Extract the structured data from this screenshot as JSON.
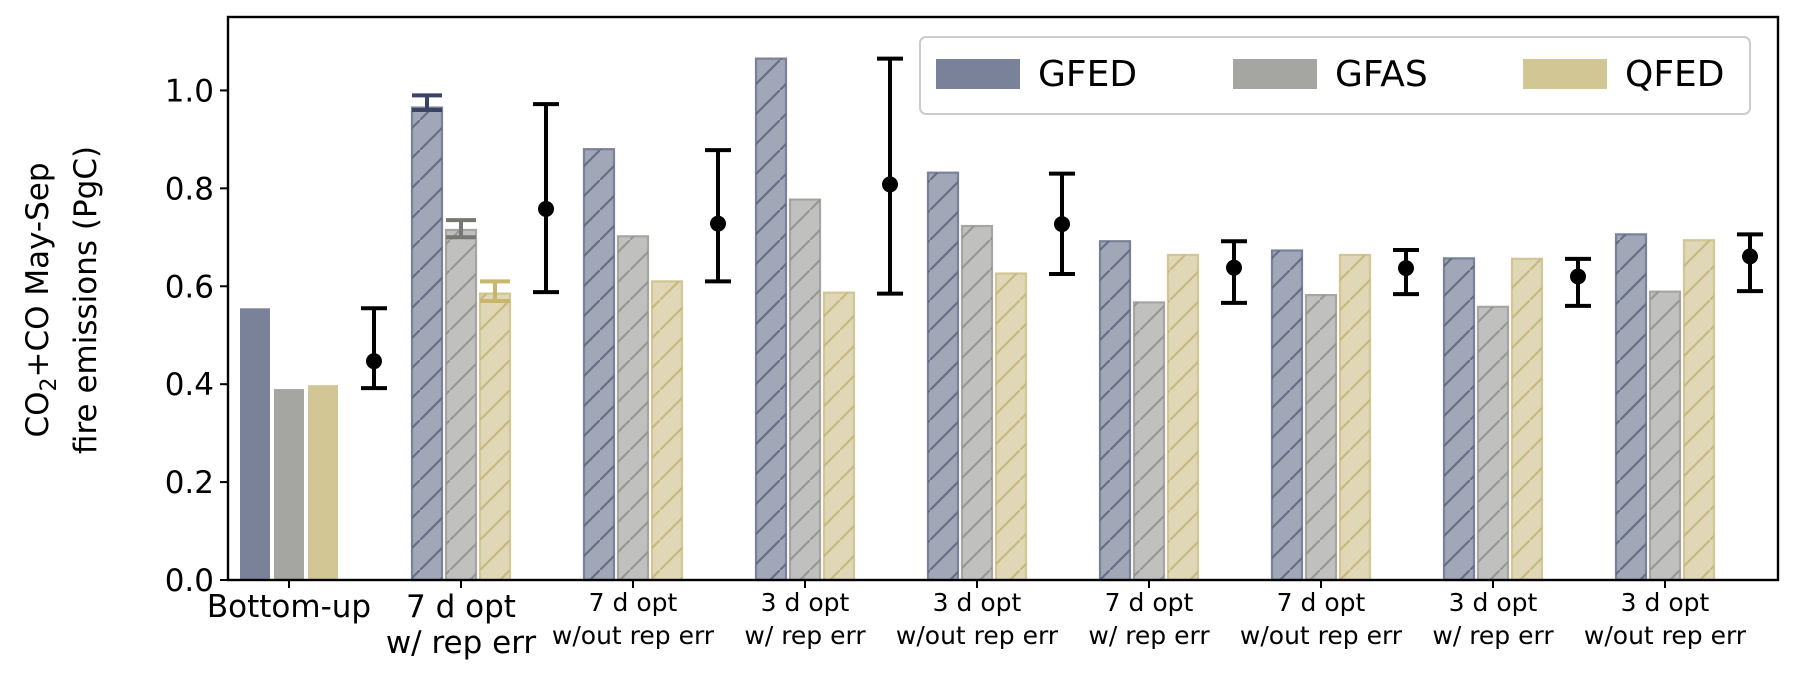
{
  "chart_data": {
    "type": "bar",
    "ylabel_line1": "CO",
    "ylabel_sub": "2",
    "ylabel_line1_rest": "+CO May-Sep",
    "ylabel_line2": "fire emissions (PgC)",
    "ylim": [
      0,
      1.15
    ],
    "yticks": [
      "0.0",
      "0.2",
      "0.4",
      "0.6",
      "0.8",
      "1.0"
    ],
    "categories": [
      {
        "line1": "Bottom-up",
        "line2": "",
        "size": "big"
      },
      {
        "line1": "7 d opt",
        "line2": "w/ rep err",
        "size": "big"
      },
      {
        "line1": "7 d opt",
        "line2": "w/out rep err",
        "size": "small"
      },
      {
        "line1": "3 d opt",
        "line2": "w/ rep err",
        "size": "small"
      },
      {
        "line1": "3 d opt",
        "line2": "w/out rep err",
        "size": "small"
      },
      {
        "line1": "7 d opt",
        "line2": "w/ rep err",
        "size": "small"
      },
      {
        "line1": "7 d opt",
        "line2": "w/out rep err",
        "size": "small"
      },
      {
        "line1": "3 d opt",
        "line2": "w/ rep err",
        "size": "small"
      },
      {
        "line1": "3 d opt",
        "line2": "w/out rep err",
        "size": "small"
      }
    ],
    "series": [
      {
        "name": "GFED",
        "color": "#7a8299",
        "values": [
          0.555,
          0.965,
          0.88,
          1.065,
          0.832,
          0.692,
          0.673,
          0.657,
          0.706
        ],
        "errors": [
          null,
          [
            0.96,
            0.99
          ],
          null,
          null,
          null,
          null,
          null,
          null,
          null
        ]
      },
      {
        "name": "GFAS",
        "color": "#a5a6a2",
        "values": [
          0.39,
          0.715,
          0.702,
          0.777,
          0.723,
          0.567,
          0.582,
          0.558,
          0.589
        ],
        "errors": [
          null,
          [
            0.7,
            0.735
          ],
          null,
          null,
          null,
          null,
          null,
          null,
          null
        ]
      },
      {
        "name": "QFED",
        "color": "#d2c695",
        "values": [
          0.398,
          0.585,
          0.61,
          0.587,
          0.626,
          0.664,
          0.664,
          0.656,
          0.694
        ],
        "errors": [
          null,
          [
            0.57,
            0.61
          ],
          null,
          null,
          null,
          null,
          null,
          null,
          null
        ]
      }
    ],
    "means": [
      {
        "value": 0.447,
        "low": 0.392,
        "high": 0.555
      },
      {
        "value": 0.758,
        "low": 0.588,
        "high": 0.972
      },
      {
        "value": 0.728,
        "low": 0.61,
        "high": 0.878
      },
      {
        "value": 0.808,
        "low": 0.585,
        "high": 1.065
      },
      {
        "value": 0.727,
        "low": 0.625,
        "high": 0.83
      },
      {
        "value": 0.638,
        "low": 0.566,
        "high": 0.692
      },
      {
        "value": 0.637,
        "low": 0.584,
        "high": 0.674
      },
      {
        "value": 0.62,
        "low": 0.56,
        "high": 0.656
      },
      {
        "value": 0.661,
        "low": 0.59,
        "high": 0.706
      }
    ],
    "hatched_from_category": 1,
    "legend_position": "top-right"
  }
}
